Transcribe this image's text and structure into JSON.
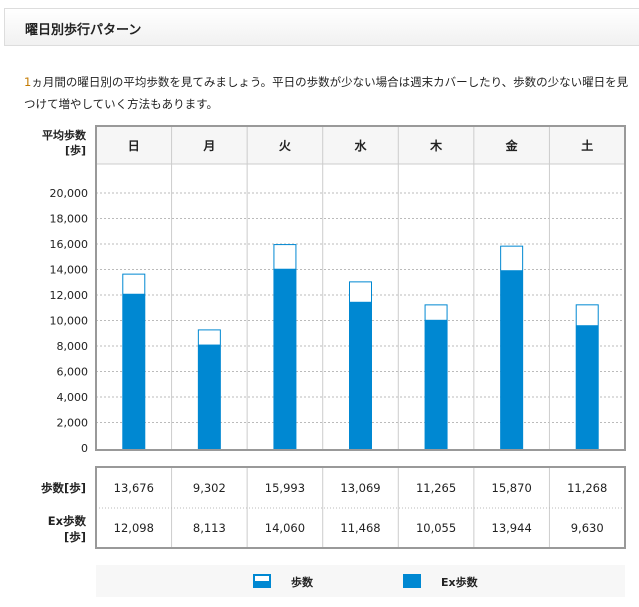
{
  "header": {
    "title": "曜日別歩行パターン"
  },
  "description": {
    "lead": "1",
    "text": "ヵ月間の曜日別の平均歩数を見てみましょう。平日の歩数が少ない場合は週末カバーしたり、歩数の少ない曜日を見つけて増やしていく方法もあります。"
  },
  "chart_data": {
    "type": "bar",
    "ylabel": "平均歩数\n[歩]",
    "categories": [
      "日",
      "月",
      "火",
      "水",
      "木",
      "金",
      "土"
    ],
    "ylim": [
      0,
      20000
    ],
    "yticks": [
      "0",
      "2,000",
      "4,000",
      "6,000",
      "8,000",
      "10,000",
      "12,000",
      "14,000",
      "16,000",
      "18,000",
      "20,000"
    ],
    "grid": true,
    "series": [
      {
        "name": "歩数",
        "values": [
          13676,
          9302,
          15993,
          13069,
          11265,
          15870,
          11268
        ],
        "color": "#ffffff",
        "stroke": "#0088d2"
      },
      {
        "name": "Ex歩数",
        "values": [
          12098,
          8113,
          14060,
          11468,
          10055,
          13944,
          9630
        ],
        "color": "#0088d2"
      }
    ],
    "legend": "bottom"
  },
  "table": {
    "rows": [
      {
        "label": "歩数[歩]",
        "values": [
          "13,676",
          "9,302",
          "15,993",
          "13,069",
          "11,265",
          "15,870",
          "11,268"
        ]
      },
      {
        "label1": "Ex歩数",
        "label2": "[歩]",
        "values": [
          "12,098",
          "8,113",
          "14,060",
          "11,468",
          "10,055",
          "13,944",
          "9,630"
        ]
      }
    ]
  }
}
